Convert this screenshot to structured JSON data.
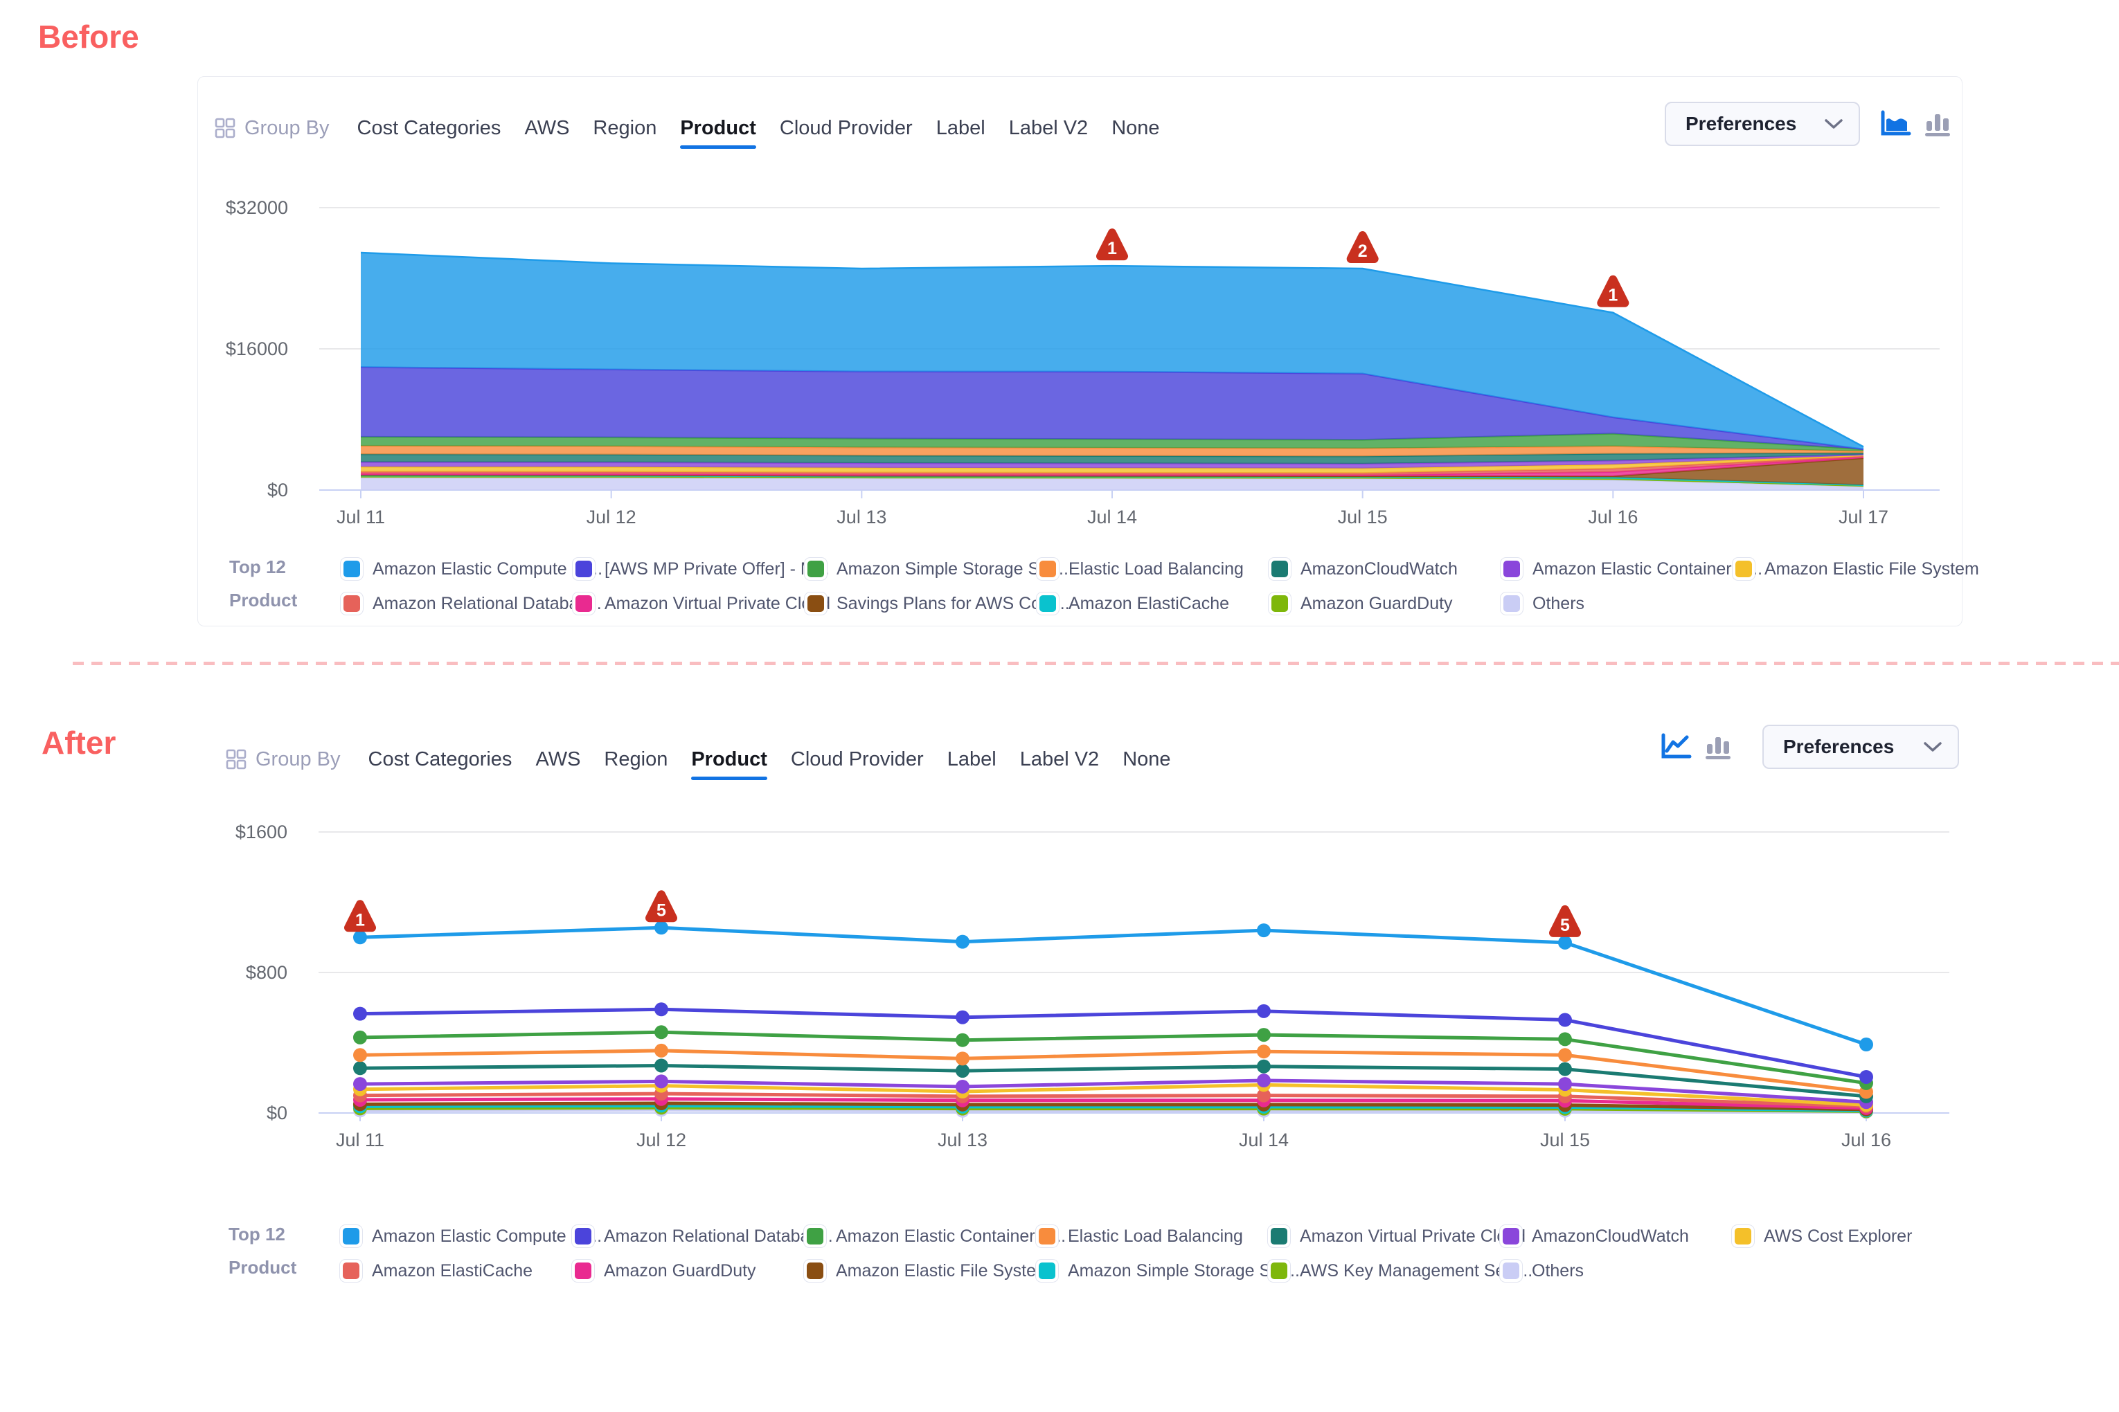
{
  "page": {
    "before_title": "Before",
    "after_title": "After"
  },
  "toolbar": {
    "group_by_label": "Group By",
    "tabs": [
      "Cost Categories",
      "AWS",
      "Region",
      "Product",
      "Cloud Provider",
      "Label",
      "Label V2",
      "None"
    ],
    "selected_tab": "Product",
    "preferences_label": "Preferences",
    "before_chart_type_icons": [
      "area-chart",
      "bar-chart"
    ],
    "before_active_icon": "area-chart",
    "after_chart_type_icons": [
      "line-chart",
      "bar-chart"
    ],
    "after_active_icon": "line-chart"
  },
  "legend_title": {
    "line1": "Top 12",
    "line2": "Product"
  },
  "colors": {
    "palette": {
      "blue": "#1E9BE9",
      "indigo": "#4B44DB",
      "green": "#3FA144",
      "orange": "#F88C3D",
      "teal": "#1B7B72",
      "purple": "#8A46DB",
      "yellow": "#F4C02A",
      "red": "#E6625A",
      "pink": "#E92A90",
      "brown": "#8A4E12",
      "cyan": "#0AC2CE",
      "ygreen": "#7EB70B",
      "lavender": "#CACDF5"
    },
    "accent": "#1173E3",
    "inactive_icon": "#9B9FB5",
    "badge": "#C9301F",
    "divider": "#F9BDC0",
    "section_title": "#F96060"
  },
  "chart_data": [
    {
      "id": "before",
      "type": "area",
      "title": "",
      "x_labels": [
        "Jul 11",
        "Jul 12",
        "Jul 13",
        "Jul 14",
        "Jul 15",
        "Jul 16",
        "Jul 17"
      ],
      "y_tick_labels": [
        "$0",
        "$16000",
        "$32000"
      ],
      "y_axis_range": [
        0,
        32000
      ],
      "y_max": 32000,
      "grid": true,
      "legend_position": "bottom",
      "series": [
        {
          "name": "Others",
          "color": "lavender",
          "values": [
            1400,
            1380,
            1320,
            1300,
            1280,
            1150,
            420
          ]
        },
        {
          "name": "Amazon GuardDuty",
          "color": "ygreen",
          "values": [
            140,
            140,
            135,
            135,
            130,
            130,
            60
          ]
        },
        {
          "name": "Amazon ElastiCache",
          "color": "cyan",
          "values": [
            180,
            180,
            175,
            175,
            170,
            170,
            90
          ]
        },
        {
          "name": "Savings Plans for AWS Com...",
          "color": "brown",
          "values": [
            0,
            0,
            0,
            0,
            0,
            120,
            3050
          ]
        },
        {
          "name": "Amazon Virtual Private Cloud",
          "color": "pink",
          "values": [
            130,
            130,
            125,
            125,
            125,
            480,
            120
          ]
        },
        {
          "name": "Amazon Relational Databas...",
          "color": "red",
          "values": [
            230,
            230,
            225,
            220,
            220,
            380,
            110
          ]
        },
        {
          "name": "Amazon Elastic File System",
          "color": "yellow",
          "values": [
            560,
            555,
            545,
            540,
            535,
            470,
            90
          ]
        },
        {
          "name": "Amazon Elastic Container S...",
          "color": "purple",
          "values": [
            540,
            535,
            530,
            525,
            520,
            440,
            90
          ]
        },
        {
          "name": "AmazonCloudWatch",
          "color": "teal",
          "values": [
            880,
            870,
            855,
            845,
            840,
            780,
            170
          ]
        },
        {
          "name": "Elastic Load Balancing",
          "color": "orange",
          "values": [
            950,
            940,
            925,
            915,
            905,
            855,
            190
          ]
        },
        {
          "name": "Amazon Simple Storage Ser...",
          "color": "green",
          "values": [
            1020,
            1010,
            995,
            985,
            975,
            1420,
            240
          ]
        },
        {
          "name": "[AWS MP Private Offer] - M...",
          "color": "indigo",
          "values": [
            7900,
            7700,
            7600,
            7650,
            7500,
            1850,
            0
          ]
        },
        {
          "name": "Amazon Elastic Compute Cl...",
          "color": "blue",
          "values": [
            12970,
            12030,
            11670,
            11985,
            11900,
            11855,
            270
          ]
        }
      ],
      "annotations": [
        {
          "x_index": 3,
          "label": "1"
        },
        {
          "x_index": 4,
          "label": "2"
        },
        {
          "x_index": 5,
          "label": "1"
        }
      ]
    },
    {
      "id": "after",
      "type": "line",
      "title": "",
      "x_labels": [
        "Jul 11",
        "Jul 12",
        "Jul 13",
        "Jul 14",
        "Jul 15",
        "Jul 16"
      ],
      "y_tick_labels": [
        "$0",
        "$800",
        "$1600"
      ],
      "y_axis_range": [
        0,
        1600
      ],
      "y_max": 1600,
      "grid": true,
      "legend_position": "bottom",
      "series": [
        {
          "name": "Amazon Elastic Compute Cl...",
          "color": "blue",
          "values": [
            1000,
            1055,
            975,
            1040,
            970,
            390
          ]
        },
        {
          "name": "Amazon Relational Databas...",
          "color": "indigo",
          "values": [
            565,
            590,
            545,
            580,
            530,
            205
          ]
        },
        {
          "name": "Amazon Elastic Container S...",
          "color": "green",
          "values": [
            430,
            460,
            415,
            445,
            420,
            170
          ]
        },
        {
          "name": "Elastic Load Balancing",
          "color": "orange",
          "values": [
            330,
            355,
            310,
            350,
            330,
            120
          ]
        },
        {
          "name": "Amazon Virtual Private Cloud",
          "color": "teal",
          "values": [
            255,
            270,
            240,
            265,
            250,
            95
          ]
        },
        {
          "name": "AmazonCloudWatch",
          "color": "purple",
          "values": [
            165,
            180,
            150,
            185,
            165,
            62
          ]
        },
        {
          "name": "AWS Cost Explorer",
          "color": "yellow",
          "values": [
            135,
            155,
            122,
            160,
            132,
            46
          ]
        },
        {
          "name": "Amazon ElastiCache",
          "color": "red",
          "values": [
            100,
            110,
            95,
            100,
            95,
            38
          ]
        },
        {
          "name": "Amazon GuardDuty",
          "color": "pink",
          "values": [
            75,
            80,
            72,
            72,
            70,
            28
          ]
        },
        {
          "name": "Amazon Elastic File System",
          "color": "brown",
          "values": [
            50,
            55,
            48,
            48,
            45,
            20
          ]
        },
        {
          "name": "Amazon Simple Storage Ser...",
          "color": "cyan",
          "values": [
            38,
            42,
            36,
            36,
            34,
            14
          ]
        },
        {
          "name": "AWS Key Management Serv...",
          "color": "ygreen",
          "values": [
            26,
            30,
            25,
            25,
            24,
            10
          ]
        },
        {
          "name": "Others",
          "color": "lavender",
          "values": [
            14,
            18,
            13,
            13,
            13,
            6
          ]
        }
      ],
      "annotations": [
        {
          "x_index": 0,
          "label": "1"
        },
        {
          "x_index": 1,
          "label": "5"
        },
        {
          "x_index": 4,
          "label": "5"
        }
      ]
    }
  ],
  "legends": {
    "before": [
      {
        "label": "Amazon Elastic Compute Cl...",
        "color": "blue"
      },
      {
        "label": "[AWS MP Private Offer] - M...",
        "color": "indigo"
      },
      {
        "label": "Amazon Simple Storage Ser...",
        "color": "green"
      },
      {
        "label": "Elastic Load Balancing",
        "color": "orange"
      },
      {
        "label": "AmazonCloudWatch",
        "color": "teal"
      },
      {
        "label": "Amazon Elastic Container S...",
        "color": "purple"
      },
      {
        "label": "Amazon Elastic File System",
        "color": "yellow"
      },
      {
        "label": "Amazon Relational Databas...",
        "color": "red"
      },
      {
        "label": "Amazon Virtual Private Cloud",
        "color": "pink"
      },
      {
        "label": "Savings Plans for AWS Com...",
        "color": "brown"
      },
      {
        "label": "Amazon ElastiCache",
        "color": "cyan"
      },
      {
        "label": "Amazon GuardDuty",
        "color": "ygreen"
      },
      {
        "label": "Others",
        "color": "lavender"
      }
    ],
    "after": [
      {
        "label": "Amazon Elastic Compute Cl...",
        "color": "blue"
      },
      {
        "label": "Amazon Relational Databas...",
        "color": "indigo"
      },
      {
        "label": "Amazon Elastic Container S...",
        "color": "green"
      },
      {
        "label": "Elastic Load Balancing",
        "color": "orange"
      },
      {
        "label": "Amazon Virtual Private Cloud",
        "color": "teal"
      },
      {
        "label": "AmazonCloudWatch",
        "color": "purple"
      },
      {
        "label": "AWS Cost Explorer",
        "color": "yellow"
      },
      {
        "label": "Amazon ElastiCache",
        "color": "red"
      },
      {
        "label": "Amazon GuardDuty",
        "color": "pink"
      },
      {
        "label": "Amazon Elastic File System",
        "color": "brown"
      },
      {
        "label": "Amazon Simple Storage Ser...",
        "color": "cyan"
      },
      {
        "label": "AWS Key Management Serv...",
        "color": "ygreen"
      },
      {
        "label": "Others",
        "color": "lavender"
      }
    ]
  }
}
